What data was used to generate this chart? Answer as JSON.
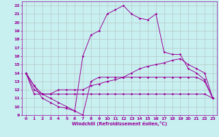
{
  "xlabel": "Windchill (Refroidissement éolien,°C)",
  "bg_color": "#c8f0f0",
  "grid_color": "#b0b0b0",
  "line_color": "#990099",
  "xlim": [
    -0.5,
    23.5
  ],
  "ylim": [
    9,
    22.5
  ],
  "xticks": [
    0,
    1,
    2,
    3,
    4,
    5,
    6,
    7,
    8,
    9,
    10,
    11,
    12,
    13,
    14,
    15,
    16,
    17,
    18,
    19,
    20,
    21,
    22,
    23
  ],
  "yticks": [
    9,
    10,
    11,
    12,
    13,
    14,
    15,
    16,
    17,
    18,
    19,
    20,
    21,
    22
  ],
  "series": [
    {
      "x": [
        0,
        1,
        2,
        3,
        4,
        5,
        6,
        7,
        8,
        9,
        10,
        11,
        12,
        13,
        14,
        15,
        16,
        17,
        18,
        19,
        20,
        21,
        22,
        23
      ],
      "y": [
        14,
        11.5,
        11.5,
        11.5,
        11.5,
        11.5,
        11.5,
        11.5,
        11.5,
        11.5,
        11.5,
        11.5,
        11.5,
        11.5,
        11.5,
        11.5,
        11.5,
        11.5,
        11.5,
        11.5,
        11.5,
        11.5,
        11.5,
        11
      ]
    },
    {
      "x": [
        0,
        1,
        2,
        3,
        4,
        5,
        6,
        7,
        8,
        9,
        10,
        11,
        12,
        13,
        14,
        15,
        16,
        17,
        18,
        19,
        20,
        21,
        22,
        23
      ],
      "y": [
        14,
        12,
        11.5,
        11.5,
        12,
        12,
        12,
        12,
        12.5,
        12.7,
        13,
        13.2,
        13.5,
        14,
        14.5,
        14.8,
        15,
        15.2,
        15.5,
        15.7,
        15,
        14.5,
        14,
        11
      ]
    },
    {
      "x": [
        0,
        1,
        2,
        3,
        4,
        5,
        6,
        7,
        8,
        9,
        10,
        11,
        12,
        13,
        14,
        15,
        16,
        17,
        18,
        19,
        20,
        21,
        22,
        23
      ],
      "y": [
        14,
        12.5,
        11,
        10.5,
        10,
        9.8,
        9.5,
        9,
        13,
        13.5,
        13.5,
        13.5,
        13.5,
        13.5,
        13.5,
        13.5,
        13.5,
        13.5,
        13.5,
        13.5,
        13.5,
        13.5,
        13,
        11
      ]
    },
    {
      "x": [
        0,
        1,
        2,
        3,
        4,
        5,
        6,
        7,
        8,
        9,
        10,
        11,
        12,
        13,
        14,
        15,
        16,
        17,
        18,
        19,
        20,
        21,
        22,
        23
      ],
      "y": [
        14,
        12.5,
        11.5,
        11,
        10.5,
        10,
        9.5,
        16,
        18.5,
        19,
        21,
        21.5,
        22,
        21,
        20.5,
        20.3,
        21,
        16.5,
        16.2,
        16.2,
        14.5,
        14,
        13.2,
        11
      ]
    }
  ]
}
